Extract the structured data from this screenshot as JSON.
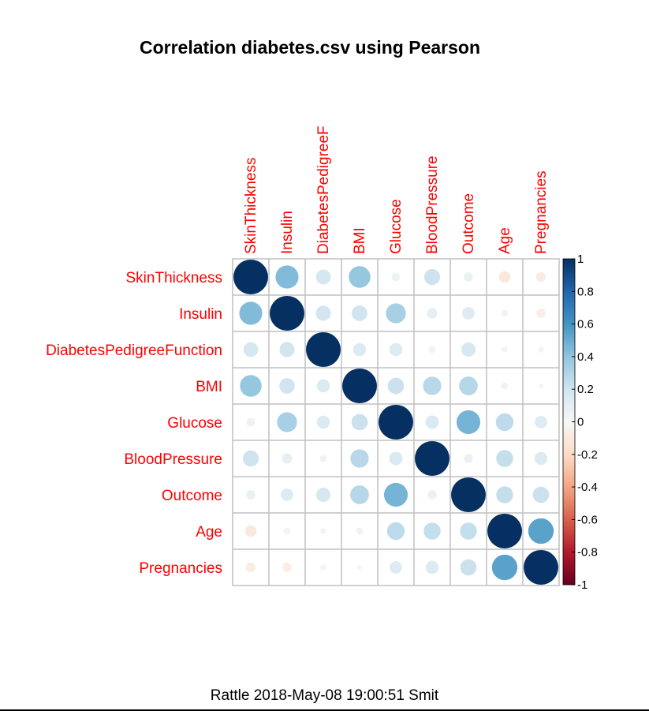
{
  "chart_data": {
    "type": "heatmap",
    "title": "Correlation diabetes.csv using Pearson",
    "variables": [
      "SkinThickness",
      "Insulin",
      "DiabetesPedigreeFunction",
      "BMI",
      "Glucose",
      "BloodPressure",
      "Outcome",
      "Age",
      "Pregnancies"
    ],
    "column_labels": [
      "SkinThickness",
      "Insulin",
      "DiabetesPedigreeF",
      "BMI",
      "Glucose",
      "BloodPressure",
      "Outcome",
      "Age",
      "Pregnancies"
    ],
    "row_labels": [
      "SkinThickness",
      "Insulin",
      "DiabetesPedigreeFunction",
      "BMI",
      "Glucose",
      "BloodPressure",
      "Outcome",
      "Age",
      "Pregnancies"
    ],
    "matrix": [
      [
        1.0,
        0.44,
        0.18,
        0.39,
        0.06,
        0.21,
        0.07,
        -0.11,
        -0.08
      ],
      [
        0.44,
        1.0,
        0.19,
        0.2,
        0.33,
        0.09,
        0.13,
        -0.04,
        -0.07
      ],
      [
        0.18,
        0.19,
        1.0,
        0.14,
        0.14,
        0.04,
        0.17,
        0.03,
        -0.03
      ],
      [
        0.39,
        0.2,
        0.14,
        1.0,
        0.22,
        0.28,
        0.29,
        0.04,
        0.02
      ],
      [
        0.06,
        0.33,
        0.14,
        0.22,
        1.0,
        0.15,
        0.47,
        0.26,
        0.13
      ],
      [
        0.21,
        0.09,
        0.04,
        0.28,
        0.15,
        1.0,
        0.07,
        0.24,
        0.14
      ],
      [
        0.07,
        0.13,
        0.17,
        0.29,
        0.47,
        0.07,
        1.0,
        0.24,
        0.22
      ],
      [
        -0.11,
        -0.04,
        0.03,
        0.04,
        0.26,
        0.24,
        0.24,
        1.0,
        0.54
      ],
      [
        -0.08,
        -0.07,
        -0.03,
        0.02,
        0.13,
        0.14,
        0.22,
        0.54,
        1.0
      ]
    ],
    "colorbar_ticks": [
      "1",
      "0.8",
      "0.6",
      "0.4",
      "0.2",
      "0",
      "-0.2",
      "-0.4",
      "-0.6",
      "-0.8",
      "-1"
    ],
    "colorbar_range": [
      -1,
      1
    ],
    "color_scale": {
      "positive": "#053061",
      "neutral": "#f7f7f7",
      "negative": "#67001f"
    }
  },
  "footer": "Rattle 2018-May-08 19:00:51 Smit"
}
